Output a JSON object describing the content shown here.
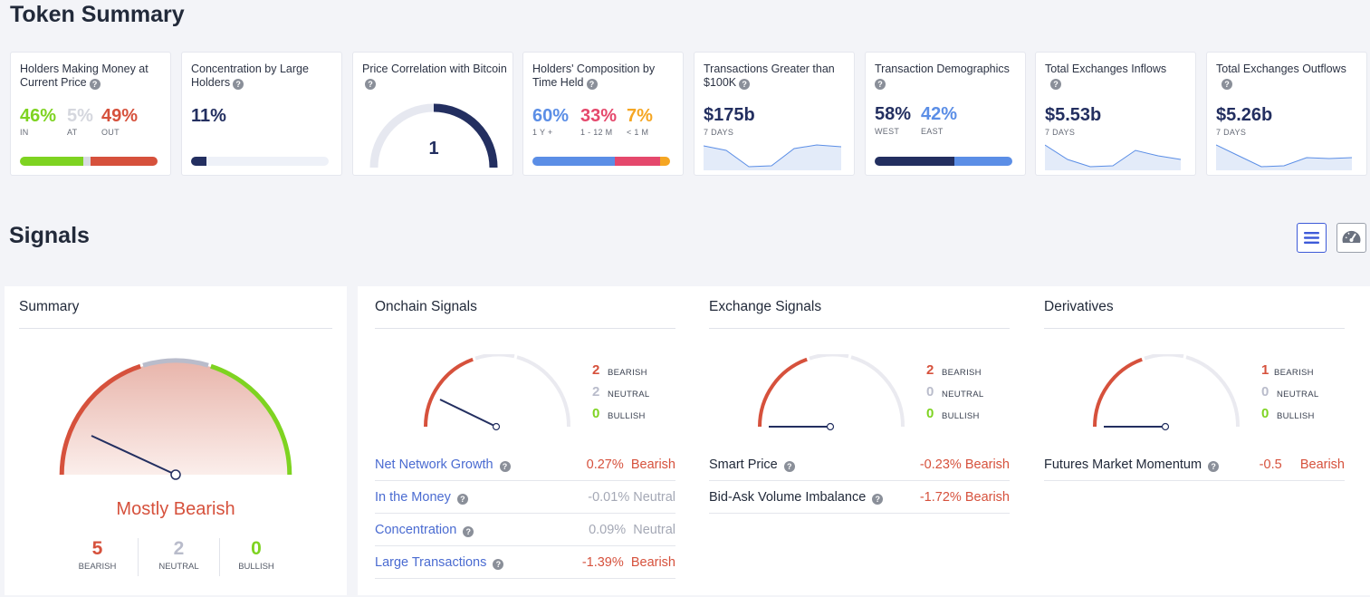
{
  "token_summary": {
    "heading": "Token Summary",
    "holders_money": {
      "title": "Holders Making Money at Current Price",
      "in_pct": "46%",
      "at_pct": "5%",
      "out_pct": "49%",
      "in_label": "IN",
      "at_label": "AT",
      "out_label": "OUT"
    },
    "concentration": {
      "title": "Concentration by Large Holders",
      "value": "11%"
    },
    "price_correlation": {
      "title": "Price Correlation with Bitcoin",
      "value": "1"
    },
    "composition": {
      "title": "Holders' Composition by Time Held",
      "v1": "60%",
      "v2": "33%",
      "v3": "7%",
      "l1": "1 Y +",
      "l2": "1 - 12 M",
      "l3": "< 1 M"
    },
    "transactions": {
      "title": "Transactions Greater than $100K",
      "value": "$175b",
      "period": "7 DAYS"
    },
    "demographics": {
      "title": "Transaction Demographics",
      "west": "58%",
      "east": "42%",
      "west_label": "WEST",
      "east_label": "EAST"
    },
    "inflows": {
      "title": "Total Exchanges Inflows",
      "value": "$5.53b",
      "period": "7 DAYS"
    },
    "outflows": {
      "title": "Total Exchanges Outflows",
      "value": "$5.26b",
      "period": "7 DAYS"
    }
  },
  "signals": {
    "heading": "Signals",
    "list_view_icon": "list-icon",
    "gauge_view_icon": "speedometer-icon",
    "summary": {
      "title": "Summary",
      "verdict": "Mostly Bearish",
      "bearish": "5",
      "neutral": "2",
      "bullish": "0",
      "bearish_label": "BEARISH",
      "neutral_label": "NEUTRAL",
      "bullish_label": "BULLISH"
    },
    "onchain": {
      "title": "Onchain Signals",
      "bearish": "2",
      "neutral": "2",
      "bullish": "0",
      "rows": [
        {
          "name": "Net Network Growth",
          "pct": "0.27%",
          "status": "Bearish"
        },
        {
          "name": "In the Money",
          "pct": "-0.01%",
          "status": "Neutral"
        },
        {
          "name": "Concentration",
          "pct": "0.09%",
          "status": "Neutral"
        },
        {
          "name": "Large Transactions",
          "pct": "-1.39%",
          "status": "Bearish"
        }
      ]
    },
    "exchange": {
      "title": "Exchange Signals",
      "bearish": "2",
      "neutral": "0",
      "bullish": "0",
      "rows": [
        {
          "name": "Smart Price",
          "pct": "-0.23%",
          "status": "Bearish"
        },
        {
          "name": "Bid-Ask Volume Imbalance",
          "pct": "-1.72%",
          "status": "Bearish"
        }
      ]
    },
    "derivatives": {
      "title": "Derivatives",
      "bearish": "1",
      "neutral": "0",
      "bullish": "0",
      "rows": [
        {
          "name": "Futures Market Momentum",
          "pct": "-0.5",
          "status": "Bearish"
        }
      ]
    },
    "labels": {
      "bearish": "BEARISH",
      "neutral": "NEUTRAL",
      "bullish": "BULLISH"
    }
  },
  "colors": {
    "green": "#7ed321",
    "red": "#d6513c",
    "grey": "#b9bccb",
    "navy": "#232f60",
    "blue": "#5b8ee6",
    "pink": "#e5486c",
    "orange": "#f5a623",
    "link": "#4a6bd1"
  }
}
